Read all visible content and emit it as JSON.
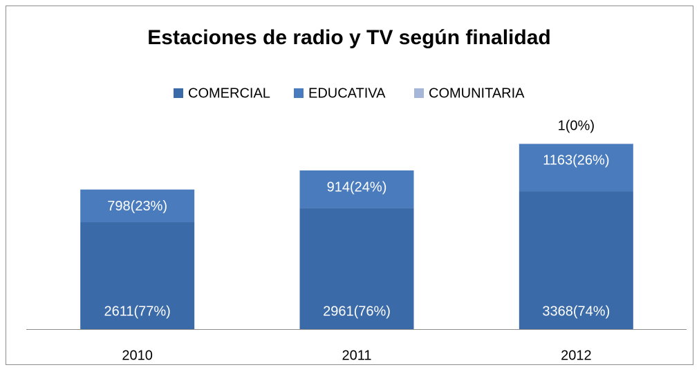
{
  "chart_data": {
    "type": "stacked-bar",
    "title": "Estaciones de radio y TV según finalidad",
    "categories": [
      "2010",
      "2011",
      "2012"
    ],
    "series": [
      {
        "name": "COMERCIAL",
        "color": "#3b6aa8",
        "values": [
          2611,
          2961,
          3368
        ],
        "value_labels": [
          "2611(77%)",
          "2961(76%)",
          "3368(74%)"
        ]
      },
      {
        "name": "EDUCATIVA",
        "color": "#4a7cbd",
        "values": [
          798,
          914,
          1163
        ],
        "value_labels": [
          "798(23%)",
          "914(24%)",
          "1163(26%)"
        ]
      },
      {
        "name": "COMUNITARIA",
        "color": "#a6b6d8",
        "values": [
          null,
          null,
          1
        ],
        "value_labels": [
          null,
          null,
          "1(0%)"
        ]
      }
    ],
    "legend": "top"
  }
}
